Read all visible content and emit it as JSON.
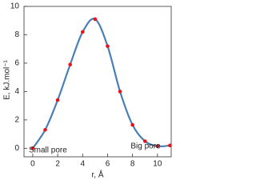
{
  "chart_data": {
    "type": "line",
    "x": [
      0,
      1,
      2,
      3,
      4,
      5,
      6,
      7,
      8,
      9,
      10,
      11
    ],
    "series": [
      {
        "color": "#4a7fb5",
        "marker_color": "#e8141c",
        "values": [
          0,
          1.3,
          3.4,
          5.9,
          8.2,
          9.1,
          7.2,
          4.0,
          1.65,
          0.5,
          0.15,
          0.2
        ]
      }
    ],
    "xlim": [
      -0.7,
      11.1
    ],
    "ylim": [
      -0.6,
      10
    ],
    "xticks": [
      0,
      2,
      4,
      6,
      8,
      10
    ],
    "yticks": [
      0,
      2,
      4,
      6,
      8,
      10
    ],
    "xlabel": "r, Å",
    "ylabel": "E, kJ.mol⁻¹",
    "annotations": [
      "Small pore",
      "Big pore"
    ],
    "smooth": true
  }
}
